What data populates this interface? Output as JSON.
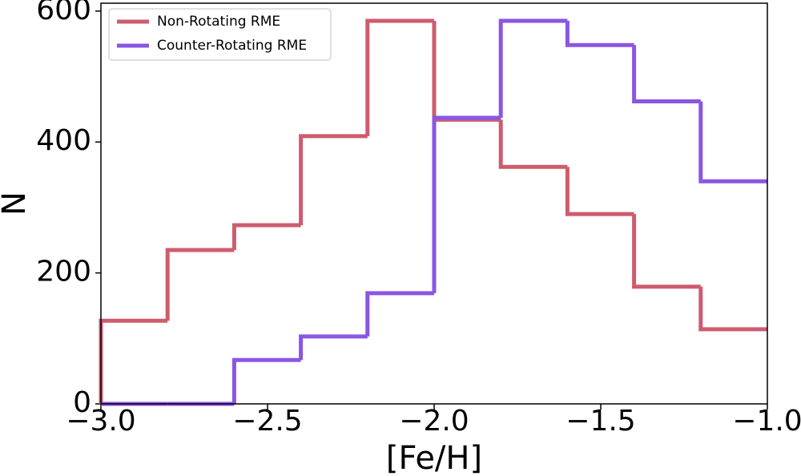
{
  "chart_data": {
    "type": "histogram",
    "xlabel": "[Fe/H]",
    "ylabel": "N",
    "bins": [
      -3.0,
      -2.8,
      -2.6,
      -2.4,
      -2.2,
      -2.0,
      -1.8,
      -1.6,
      -1.4,
      -1.2,
      -1.0
    ],
    "series": [
      {
        "name": "Non-Rotating RME",
        "color": "#cd5c6e",
        "values": [
          127,
          235,
          273,
          409,
          585,
          434,
          362,
          290,
          179,
          114
        ]
      },
      {
        "name": "Counter-Rotating RME",
        "color": "#8a56e2",
        "values": [
          0,
          0,
          67,
          103,
          169,
          437,
          585,
          548,
          462,
          340
        ]
      }
    ],
    "xlim": [
      -3.0,
      -1.0
    ],
    "ylim": [
      0,
      612
    ],
    "xticks": [
      {
        "value": -3.0,
        "label": "−3.0"
      },
      {
        "value": -2.5,
        "label": "−2.5"
      },
      {
        "value": -2.0,
        "label": "−2.0"
      },
      {
        "value": -1.5,
        "label": "−1.5"
      },
      {
        "value": -1.0,
        "label": "−1.0"
      }
    ],
    "yticks": [
      0,
      200,
      400,
      600
    ],
    "legend": "upper left"
  }
}
